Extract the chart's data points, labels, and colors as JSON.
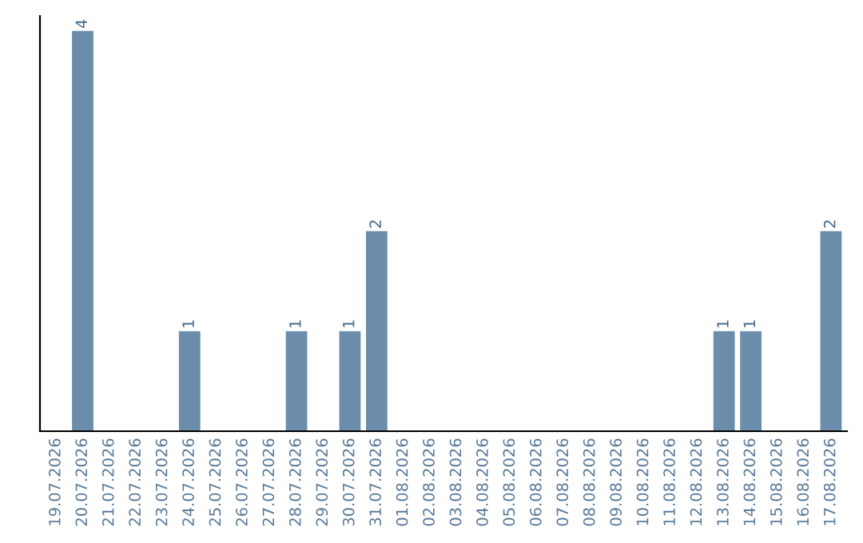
{
  "chart_data": {
    "type": "bar",
    "categories": [
      "19.07.2026",
      "20.07.2026",
      "21.07.2026",
      "22.07.2026",
      "23.07.2026",
      "24.07.2026",
      "25.07.2026",
      "26.07.2026",
      "27.07.2026",
      "28.07.2026",
      "29.07.2026",
      "30.07.2026",
      "31.07.2026",
      "01.08.2026",
      "02.08.2026",
      "03.08.2026",
      "04.08.2026",
      "05.08.2026",
      "06.08.2026",
      "07.08.2026",
      "08.08.2026",
      "09.08.2026",
      "10.08.2026",
      "11.08.2026",
      "12.08.2026",
      "13.08.2026",
      "14.08.2026",
      "15.08.2026",
      "16.08.2026",
      "17.08.2026"
    ],
    "values": [
      0,
      4,
      0,
      0,
      0,
      1,
      0,
      0,
      0,
      1,
      0,
      1,
      2,
      0,
      0,
      0,
      0,
      0,
      0,
      0,
      0,
      0,
      0,
      0,
      0,
      1,
      1,
      0,
      0,
      2
    ],
    "value_labels": [
      null,
      "4",
      null,
      null,
      null,
      "1",
      null,
      null,
      null,
      "1",
      null,
      "1",
      "2",
      null,
      null,
      null,
      null,
      null,
      null,
      null,
      null,
      null,
      null,
      null,
      null,
      "1",
      "1",
      null,
      null,
      "2"
    ],
    "color": "#6b8cab",
    "ylim": [
      0,
      4.15
    ],
    "tick_labels": "x",
    "grid": false,
    "legend": false
  }
}
